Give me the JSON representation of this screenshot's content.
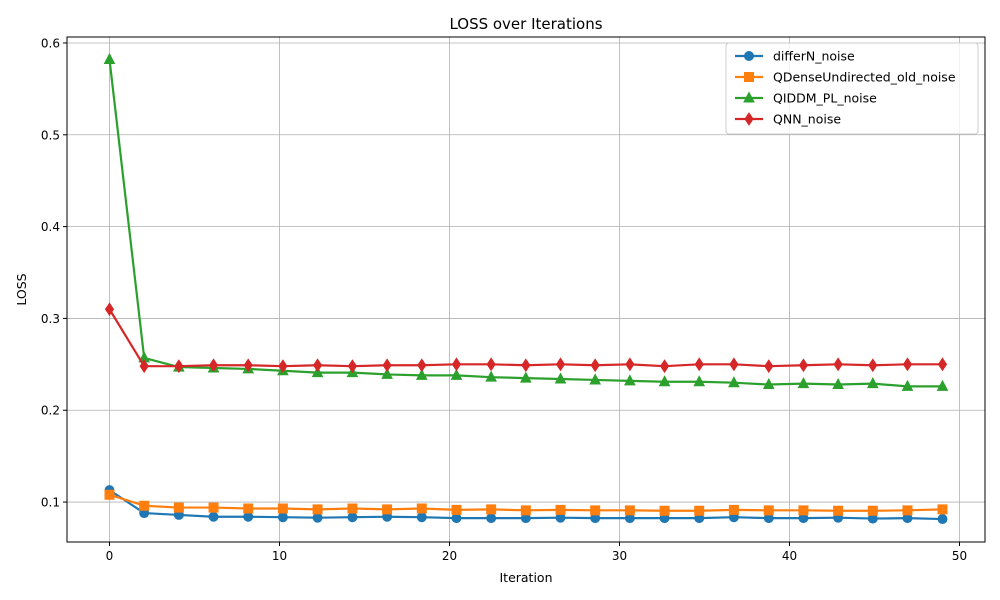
{
  "chart_data": {
    "type": "line",
    "title": "LOSS over Iterations",
    "xlabel": "Iteration",
    "ylabel": "LOSS",
    "xlim": [
      -2.5,
      51.5
    ],
    "ylim": [
      0.0565,
      0.6065
    ],
    "xticks": [
      0,
      10,
      20,
      30,
      40,
      50
    ],
    "yticks": [
      0.1,
      0.2,
      0.3,
      0.4,
      0.5,
      0.6
    ],
    "ytick_labels": [
      "0.1",
      "0.2",
      "0.3",
      "0.4",
      "0.5",
      "0.6"
    ],
    "grid": true,
    "legend_position": "top-right",
    "x": [
      0,
      2.04,
      4.08,
      6.12,
      8.16,
      10.2,
      12.24,
      14.29,
      16.33,
      18.37,
      20.41,
      22.45,
      24.49,
      26.53,
      28.57,
      30.61,
      32.65,
      34.69,
      36.73,
      38.78,
      40.82,
      42.86,
      44.9,
      46.94,
      49
    ],
    "series": [
      {
        "name": "differN_noise",
        "color": "#1f77b4",
        "marker": "circle",
        "values": [
          0.113,
          0.088,
          0.086,
          0.084,
          0.084,
          0.0835,
          0.083,
          0.0835,
          0.084,
          0.0835,
          0.0825,
          0.0825,
          0.0825,
          0.083,
          0.0825,
          0.0825,
          0.0825,
          0.0825,
          0.0835,
          0.0825,
          0.0825,
          0.083,
          0.082,
          0.0825,
          0.0815
        ]
      },
      {
        "name": "QDenseUndirected_old_noise",
        "color": "#ff7f0e",
        "marker": "square",
        "values": [
          0.108,
          0.096,
          0.094,
          0.094,
          0.093,
          0.093,
          0.092,
          0.093,
          0.092,
          0.093,
          0.0915,
          0.092,
          0.091,
          0.0915,
          0.091,
          0.091,
          0.0905,
          0.0905,
          0.0915,
          0.091,
          0.091,
          0.0905,
          0.0905,
          0.091,
          0.092
        ]
      },
      {
        "name": "QIDDM_PL_noise",
        "color": "#2ca02c",
        "marker": "triangle",
        "values": [
          0.582,
          0.257,
          0.247,
          0.246,
          0.245,
          0.243,
          0.241,
          0.241,
          0.239,
          0.238,
          0.238,
          0.236,
          0.235,
          0.234,
          0.233,
          0.232,
          0.231,
          0.231,
          0.23,
          0.228,
          0.229,
          0.228,
          0.229,
          0.226,
          0.226
        ]
      },
      {
        "name": "QNN_noise",
        "color": "#d62728",
        "marker": "diamond",
        "values": [
          0.31,
          0.248,
          0.248,
          0.249,
          0.249,
          0.248,
          0.249,
          0.248,
          0.249,
          0.249,
          0.25,
          0.25,
          0.249,
          0.25,
          0.249,
          0.25,
          0.248,
          0.25,
          0.25,
          0.248,
          0.249,
          0.25,
          0.249,
          0.25,
          0.25
        ]
      }
    ]
  }
}
